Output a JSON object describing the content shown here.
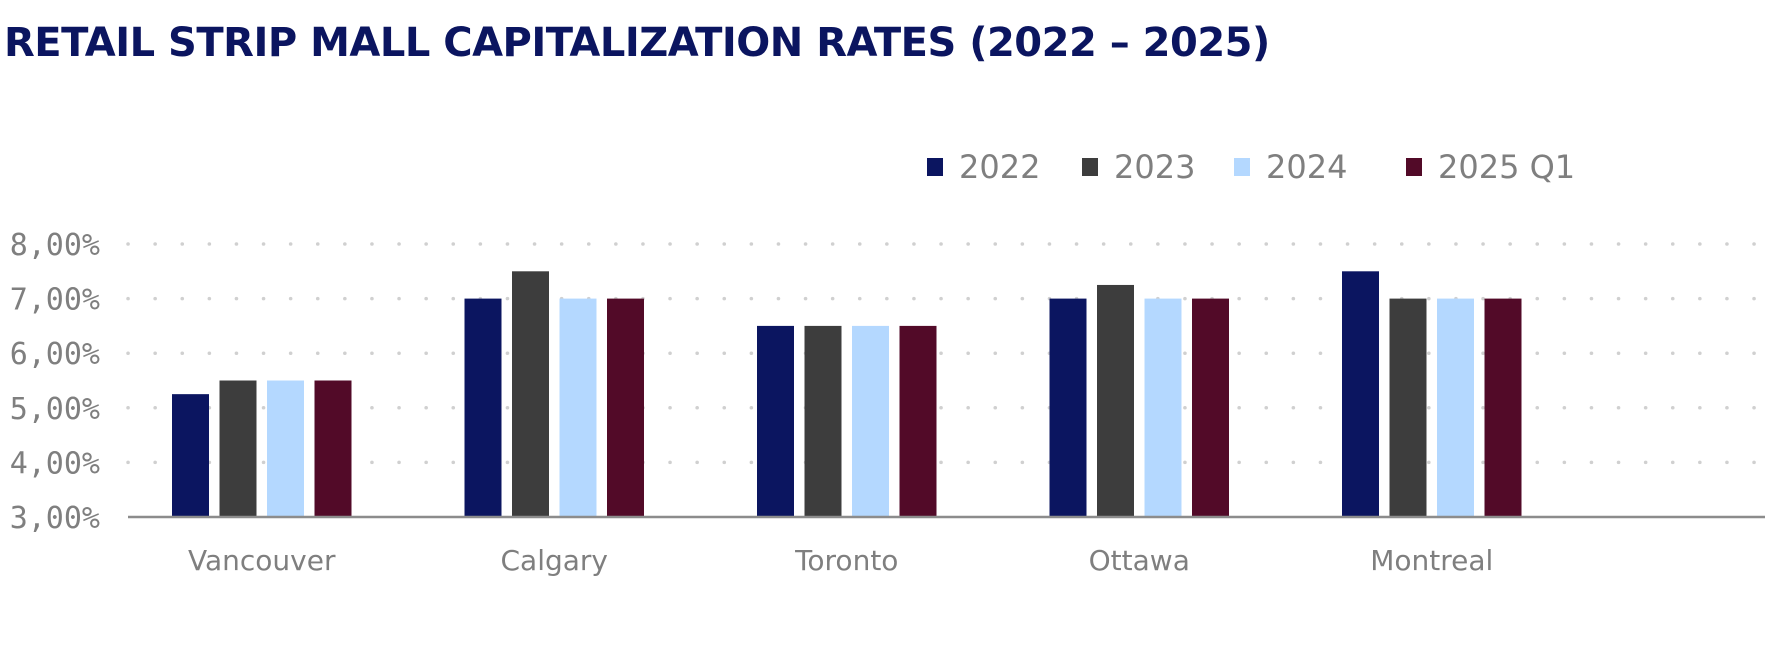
{
  "colors": {
    "title": "#0b1560",
    "axis_text": "#7f7f7f",
    "axis_line": "#8c8c8c",
    "grid": "#d0d0d0"
  },
  "chart_data": {
    "type": "bar",
    "title": "RETAIL STRIP MALL CAPITALIZATION RATES (2022 – 2025)",
    "xlabel": "",
    "ylabel": "",
    "categories": [
      "Vancouver",
      "Calgary",
      "Toronto",
      "Ottawa",
      "Montreal"
    ],
    "series": [
      {
        "name": "2022",
        "color": "#0b1560",
        "values": [
          5.25,
          7.0,
          6.5,
          7.0,
          7.5
        ]
      },
      {
        "name": "2023",
        "color": "#3d3d3d",
        "values": [
          5.5,
          7.5,
          6.5,
          7.25,
          7.0
        ]
      },
      {
        "name": "2024",
        "color": "#b4d8ff",
        "values": [
          5.5,
          7.0,
          6.5,
          7.0,
          7.0
        ]
      },
      {
        "name": "2025 Q1",
        "color": "#520a28",
        "values": [
          5.5,
          7.0,
          6.5,
          7.0,
          7.0
        ]
      }
    ],
    "ylim": [
      3,
      8
    ],
    "yticks": [
      3,
      4,
      5,
      6,
      7,
      8
    ],
    "ytick_labels": [
      "3,00%",
      "4,00%",
      "5,00%",
      "6,00%",
      "7,00%",
      "8,00%"
    ],
    "grid": "dotted horizontal",
    "legend": "top-right"
  }
}
